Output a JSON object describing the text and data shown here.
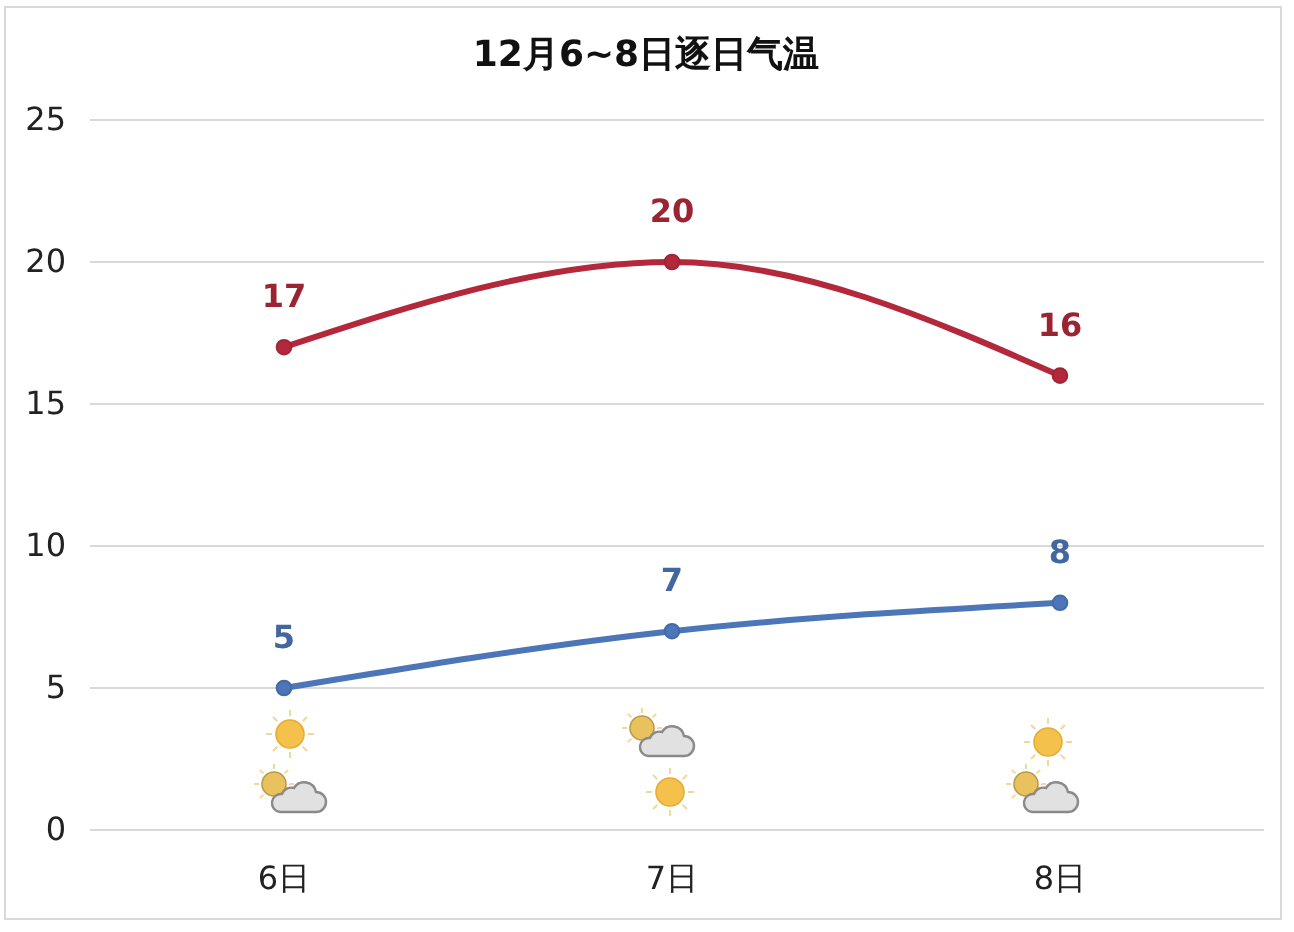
{
  "chart_data": {
    "type": "line",
    "title": "12月6~8日逐日气温",
    "categories": [
      "6日",
      "7日",
      "8日"
    ],
    "series": [
      {
        "color": "#b3293b",
        "values": [
          17,
          20,
          16
        ]
      },
      {
        "color": "#4c76b8",
        "values": [
          5,
          7,
          8
        ]
      }
    ],
    "ylim": [
      0,
      25
    ],
    "yticks": [
      0,
      5,
      10,
      15,
      20,
      25
    ],
    "grid": "y",
    "marker": "circle",
    "data_labels": true
  }
}
